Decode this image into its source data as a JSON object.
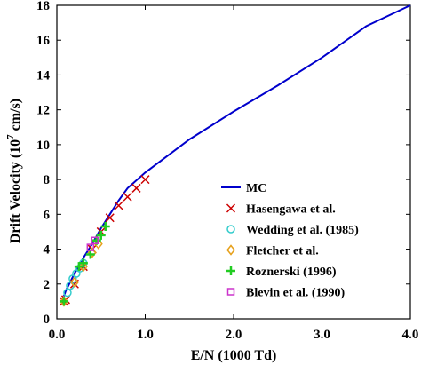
{
  "chart_data": {
    "type": "line",
    "xlabel": "E/N (1000 Td)",
    "ylabel_main": "Drift Velocity (10",
    "ylabel_sup": "7",
    "ylabel_tail": " cm/s)",
    "xlim": [
      0,
      4
    ],
    "ylim": [
      0,
      18
    ],
    "xticks": [
      0,
      1,
      2,
      3,
      4
    ],
    "xtick_labels": [
      "0.0",
      "1.0",
      "2.0",
      "3.0",
      "4.0"
    ],
    "yticks": [
      0,
      2,
      4,
      6,
      8,
      10,
      12,
      14,
      16,
      18
    ],
    "ytick_labels": [
      "0",
      "2",
      "4",
      "6",
      "8",
      "10",
      "12",
      "14",
      "16",
      "18"
    ],
    "grid": false,
    "legend_position": "lower-right",
    "series": [
      {
        "name": "MC",
        "kind": "line",
        "color": "#0000cc",
        "x": [
          0.08,
          0.1,
          0.15,
          0.2,
          0.3,
          0.4,
          0.5,
          0.6,
          0.7,
          0.8,
          1.0,
          1.5,
          2.0,
          2.5,
          3.0,
          3.5,
          4.0
        ],
        "y": [
          1.3,
          1.6,
          2.1,
          2.6,
          3.5,
          4.3,
          5.2,
          6.0,
          6.8,
          7.5,
          8.4,
          10.3,
          11.9,
          13.4,
          15.0,
          16.8,
          18.0
        ]
      },
      {
        "name": "Hasengawa et al.",
        "kind": "marker",
        "marker": "x",
        "color": "#cc0000",
        "x": [
          0.08,
          0.1,
          0.2,
          0.3,
          0.4,
          0.5,
          0.6,
          0.7,
          0.8,
          0.9,
          1.0
        ],
        "y": [
          1.0,
          1.1,
          2.0,
          3.0,
          4.0,
          5.0,
          5.8,
          6.5,
          7.0,
          7.5,
          8.0
        ]
      },
      {
        "name": "Wedding et al. (1985)",
        "kind": "marker",
        "marker": "circle",
        "color": "#33cccc",
        "x": [
          0.12,
          0.15,
          0.18,
          0.22,
          0.26,
          0.3
        ],
        "y": [
          1.5,
          1.9,
          2.3,
          2.6,
          2.9,
          3.2
        ]
      },
      {
        "name": "Fletcher et al.",
        "kind": "marker",
        "marker": "diamond",
        "color": "#e6a01a",
        "x": [
          0.08,
          0.2,
          0.3,
          0.4,
          0.47
        ],
        "y": [
          1.0,
          2.1,
          3.0,
          3.8,
          4.3
        ]
      },
      {
        "name": "Roznerski (1996)",
        "kind": "marker",
        "marker": "plus",
        "color": "#22cc22",
        "x": [
          0.08,
          0.25,
          0.3,
          0.38,
          0.45,
          0.5,
          0.55
        ],
        "y": [
          1.0,
          3.0,
          3.2,
          3.7,
          4.5,
          4.8,
          5.3
        ]
      },
      {
        "name": "Blevin et al. (1990)",
        "kind": "marker",
        "marker": "square",
        "color": "#cc33cc",
        "x": [
          0.38,
          0.43
        ],
        "y": [
          4.1,
          4.5
        ]
      }
    ]
  }
}
